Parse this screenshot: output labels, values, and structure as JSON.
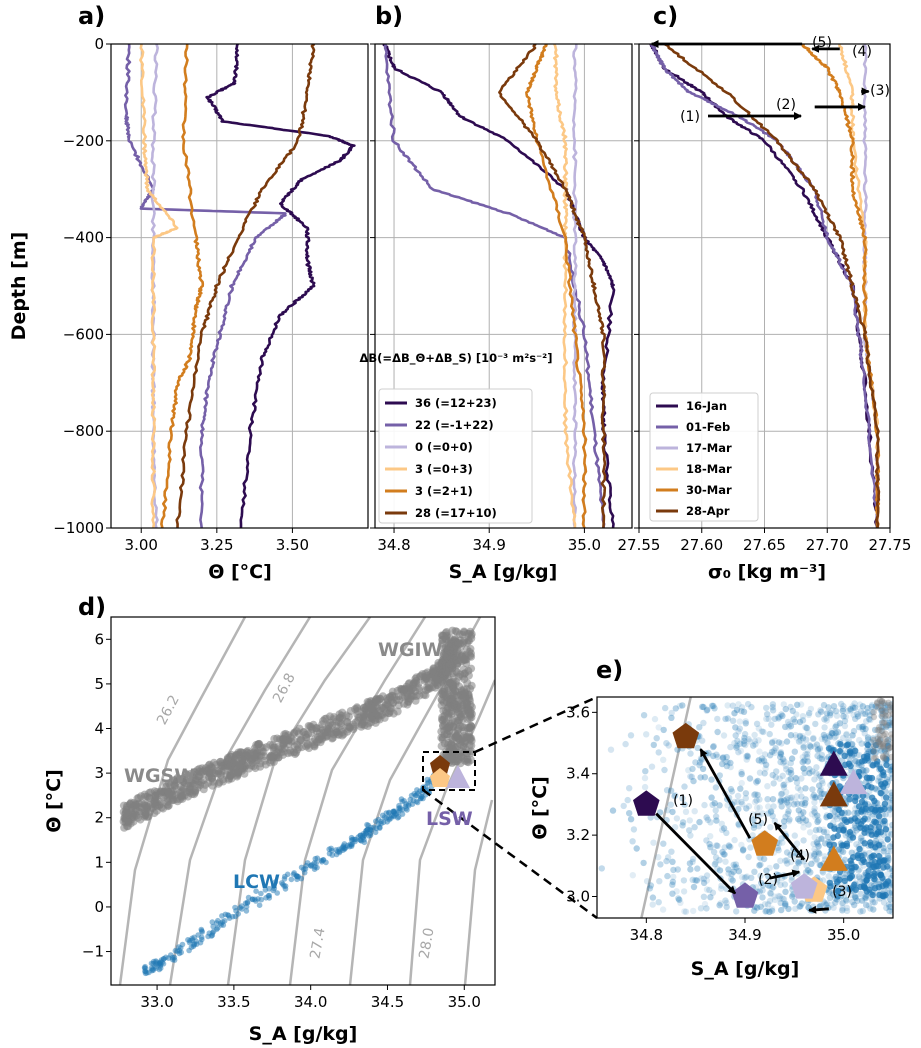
{
  "colors": [
    "#2d0b50",
    "#7560a8",
    "#bdb4dc",
    "#fcc886",
    "#d27d1e",
    "#7a3a0c"
  ],
  "chart_data": [
    {
      "panel": "a)",
      "type": "line",
      "xlabel": "Θ [°C]",
      "ylabel": "Depth [m]",
      "xlim": [
        2.9,
        3.75
      ],
      "ylim": [
        -1000,
        0
      ],
      "xticks": [
        "3.00",
        "3.25",
        "3.50"
      ],
      "yticks": [
        "0",
        "−200",
        "−400",
        "−600",
        "−800",
        "−1000"
      ],
      "grid": true,
      "series": [
        {
          "name": "16-Jan",
          "depth": [
            0,
            -80,
            -110,
            -160,
            -190,
            -210,
            -240,
            -280,
            -330,
            -380,
            -450,
            -500,
            -560,
            -650,
            -800,
            -1000
          ],
          "values": [
            3.32,
            3.31,
            3.22,
            3.27,
            3.62,
            3.7,
            3.66,
            3.53,
            3.46,
            3.55,
            3.55,
            3.57,
            3.46,
            3.4,
            3.36,
            3.33
          ]
        },
        {
          "name": "01-Feb",
          "depth": [
            0,
            -150,
            -200,
            -300,
            -340,
            -350,
            -400,
            -500,
            -600,
            -700,
            -800,
            -1000
          ],
          "values": [
            2.96,
            2.95,
            2.96,
            3.04,
            3.0,
            3.48,
            3.38,
            3.3,
            3.26,
            3.22,
            3.2,
            3.2
          ]
        },
        {
          "name": "17-Mar",
          "depth": [
            0,
            -200,
            -400,
            -600,
            -800,
            -1000
          ],
          "values": [
            3.05,
            3.04,
            3.04,
            3.04,
            3.04,
            3.05
          ]
        },
        {
          "name": "18-Mar",
          "depth": [
            0,
            -200,
            -300,
            -380,
            -400,
            -600,
            -800,
            -1000
          ],
          "values": [
            3.0,
            3.01,
            3.02,
            3.12,
            3.04,
            3.04,
            3.04,
            3.04
          ]
        },
        {
          "name": "30-Mar",
          "depth": [
            0,
            -200,
            -400,
            -500,
            -550,
            -650,
            -700,
            -800,
            -1000
          ],
          "values": [
            3.15,
            3.14,
            3.18,
            3.2,
            3.18,
            3.16,
            3.12,
            3.1,
            3.07
          ]
        },
        {
          "name": "28-Apr",
          "depth": [
            0,
            -100,
            -200,
            -300,
            -400,
            -500,
            -600,
            -800,
            -1000
          ],
          "values": [
            3.57,
            3.55,
            3.52,
            3.4,
            3.32,
            3.25,
            3.2,
            3.15,
            3.12
          ]
        }
      ]
    },
    {
      "panel": "b)",
      "type": "line",
      "xlabel": "S_A [g/kg]",
      "xlim": [
        34.78,
        35.05
      ],
      "ylim": [
        -1000,
        0
      ],
      "xticks": [
        "34.8",
        "34.9",
        "35.0"
      ],
      "grid": true,
      "legend_title": "ΔB(=ΔB_Θ+ΔB_S) [10⁻³ m²s⁻²]",
      "legend_entries": [
        "36 (=12+23)",
        "22 (=-1+22)",
        "0 (=0+0)",
        "3 (=0+3)",
        "3 (=2+1)",
        "28 (=17+10)"
      ],
      "legend_location": "lower left",
      "series": [
        {
          "name": "36 (=12+23)",
          "depth": [
            0,
            -50,
            -100,
            -150,
            -200,
            -300,
            -400,
            -450,
            -500,
            -700,
            -800,
            -1000
          ],
          "values": [
            34.79,
            34.8,
            34.85,
            34.87,
            34.92,
            34.98,
            35.0,
            35.02,
            35.03,
            35.02,
            35.02,
            35.03
          ]
        },
        {
          "name": "22 (=-1+22)",
          "depth": [
            0,
            -200,
            -300,
            -350,
            -400,
            -600,
            -800,
            -1000
          ],
          "values": [
            34.79,
            34.8,
            34.84,
            34.92,
            34.98,
            35.0,
            35.01,
            35.02
          ]
        },
        {
          "name": "0 (=0+0)",
          "depth": [
            0,
            -200,
            -400,
            -600,
            -800,
            -1000
          ],
          "values": [
            34.99,
            34.99,
            34.99,
            34.99,
            34.99,
            34.99
          ]
        },
        {
          "name": "3 (=0+3)",
          "depth": [
            0,
            -100,
            -200,
            -300,
            -400,
            -600,
            -800,
            -1000
          ],
          "values": [
            34.97,
            34.97,
            34.98,
            34.98,
            34.98,
            34.98,
            34.98,
            34.99
          ]
        },
        {
          "name": "3 (=2+1)",
          "depth": [
            0,
            -50,
            -100,
            -200,
            -400,
            -600,
            -800,
            -1000
          ],
          "values": [
            34.96,
            34.95,
            34.94,
            34.95,
            34.98,
            34.99,
            35.0,
            35.0
          ]
        },
        {
          "name": "28 (=17+10)",
          "depth": [
            0,
            -100,
            -200,
            -300,
            -400,
            -500,
            -600,
            -800,
            -1000
          ],
          "values": [
            34.95,
            34.91,
            34.95,
            34.98,
            35.0,
            35.01,
            35.02,
            35.02,
            35.02
          ]
        }
      ]
    },
    {
      "panel": "c)",
      "type": "line",
      "xlabel": "σ₀ [kg m⁻³]",
      "xlim": [
        27.55,
        27.75
      ],
      "ylim": [
        -1000,
        0
      ],
      "xticks": [
        "27.55",
        "27.60",
        "27.65",
        "27.70",
        "27.75"
      ],
      "grid": true,
      "legend_entries": [
        "16-Jan",
        "01-Feb",
        "17-Mar",
        "18-Mar",
        "30-Mar",
        "28-Apr"
      ],
      "legend_location": "lower left",
      "annotations": [
        "(1)",
        "(2)",
        "(3)",
        "(4)",
        "(5)"
      ],
      "series": [
        {
          "name": "16-Jan",
          "depth": [
            0,
            -50,
            -100,
            -150,
            -200,
            -300,
            -400,
            -500,
            -700,
            -1000
          ],
          "values": [
            27.56,
            27.57,
            27.6,
            27.62,
            27.65,
            27.68,
            27.7,
            27.72,
            27.73,
            27.74
          ]
        },
        {
          "name": "01-Feb",
          "depth": [
            0,
            -50,
            -100,
            -150,
            -200,
            -300,
            -400,
            -500,
            -700,
            -1000
          ],
          "values": [
            27.56,
            27.57,
            27.59,
            27.63,
            27.66,
            27.69,
            27.7,
            27.72,
            27.73,
            27.74
          ]
        },
        {
          "name": "17-Mar",
          "depth": [
            0,
            -200,
            -400,
            -600,
            -800,
            -1000
          ],
          "values": [
            27.73,
            27.73,
            27.73,
            27.73,
            27.74,
            27.74
          ]
        },
        {
          "name": "18-Mar",
          "depth": [
            0,
            -100,
            -200,
            -400,
            -600,
            -800,
            -1000
          ],
          "values": [
            27.71,
            27.72,
            27.72,
            27.73,
            27.73,
            27.74,
            27.74
          ]
        },
        {
          "name": "30-Mar",
          "depth": [
            0,
            -50,
            -100,
            -200,
            -300,
            -400,
            -600,
            -800,
            -1000
          ],
          "values": [
            27.68,
            27.7,
            27.71,
            27.72,
            27.72,
            27.73,
            27.73,
            27.74,
            27.74
          ]
        },
        {
          "name": "28-Apr",
          "depth": [
            0,
            -100,
            -200,
            -300,
            -400,
            -500,
            -600,
            -800,
            -1000
          ],
          "values": [
            27.57,
            27.62,
            27.66,
            27.69,
            27.71,
            27.72,
            27.73,
            27.74,
            27.74
          ]
        }
      ]
    },
    {
      "panel": "d)",
      "type": "scatter",
      "xlabel": "S_A [g/kg]",
      "ylabel": "Θ [°C]",
      "xlim": [
        32.7,
        35.2
      ],
      "ylim": [
        -1.75,
        6.5
      ],
      "xticks": [
        "33.0",
        "33.5",
        "34.0",
        "34.5",
        "35.0"
      ],
      "yticks": [
        "−1",
        "0",
        "1",
        "2",
        "3",
        "4",
        "5",
        "6"
      ],
      "water_masses": [
        "WGIW",
        "WGSW",
        "LCW",
        "LSW"
      ],
      "isopycnal_labels": [
        "26.2",
        "26.8",
        "27.4",
        "28.0"
      ],
      "series": [
        {
          "name": "WGSW",
          "x": [
            32.78,
            33.0,
            33.3,
            33.6,
            33.9,
            34.2,
            34.5,
            34.8,
            34.95
          ],
          "y": [
            2.0,
            2.4,
            2.9,
            3.3,
            3.7,
            4.1,
            4.5,
            5.1,
            5.8
          ]
        },
        {
          "name": "LCW",
          "x": [
            32.9,
            33.1,
            33.4,
            33.7,
            34.0,
            34.3,
            34.5,
            34.7,
            34.85
          ],
          "y": [
            -1.5,
            -1.1,
            -0.4,
            0.3,
            0.9,
            1.5,
            2.0,
            2.5,
            3.0
          ]
        }
      ]
    },
    {
      "panel": "e)",
      "type": "scatter",
      "xlabel": "S_A [g/kg]",
      "ylabel": "Θ [°C]",
      "xlim": [
        34.75,
        35.05
      ],
      "ylim": [
        2.93,
        3.65
      ],
      "xticks": [
        "34.8",
        "34.9",
        "35.0"
      ],
      "yticks": [
        "3.0",
        "3.2",
        "3.4",
        "3.6"
      ],
      "annotations": [
        "(1)",
        "(2)",
        "(3)",
        "(4)",
        "(5)"
      ],
      "series": [
        {
          "name": "pentagons",
          "x": [
            34.8,
            34.9,
            34.97,
            34.96,
            34.92,
            34.84
          ],
          "y": [
            3.3,
            3.0,
            3.02,
            3.03,
            3.17,
            3.52
          ]
        },
        {
          "name": "triangles",
          "x": [
            34.99,
            35.01,
            34.99,
            34.99
          ],
          "y": [
            3.43,
            3.37,
            3.33,
            3.12
          ]
        }
      ]
    }
  ]
}
